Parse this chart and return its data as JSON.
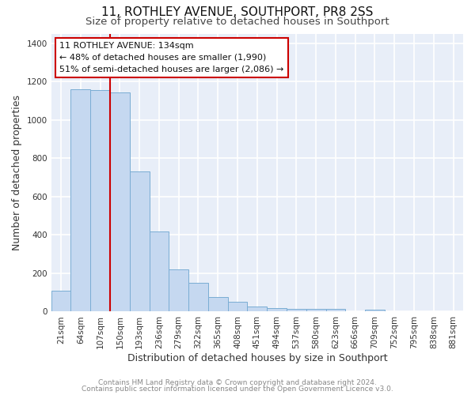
{
  "title": "11, ROTHLEY AVENUE, SOUTHPORT, PR8 2SS",
  "subtitle": "Size of property relative to detached houses in Southport",
  "xlabel": "Distribution of detached houses by size in Southport",
  "ylabel": "Number of detached properties",
  "footnote1": "Contains HM Land Registry data © Crown copyright and database right 2024.",
  "footnote2": "Contains public sector information licensed under the Open Government Licence v3.0.",
  "categories": [
    "21sqm",
    "64sqm",
    "107sqm",
    "150sqm",
    "193sqm",
    "236sqm",
    "279sqm",
    "322sqm",
    "365sqm",
    "408sqm",
    "451sqm",
    "494sqm",
    "537sqm",
    "580sqm",
    "623sqm",
    "666sqm",
    "709sqm",
    "752sqm",
    "795sqm",
    "838sqm",
    "881sqm"
  ],
  "values": [
    110,
    1160,
    1155,
    1145,
    730,
    420,
    220,
    150,
    75,
    50,
    28,
    20,
    14,
    14,
    14,
    0,
    10,
    0,
    0,
    0,
    0
  ],
  "bar_color": "#c5d8f0",
  "bar_edge_color": "#7aadd4",
  "red_line_index": 3,
  "annotation_line1": "11 ROTHLEY AVENUE: 134sqm",
  "annotation_line2": "← 48% of detached houses are smaller (1,990)",
  "annotation_line3": "51% of semi-detached houses are larger (2,086) →",
  "annotation_box_color": "#ffffff",
  "annotation_box_edge_color": "#cc0000",
  "ylim": [
    0,
    1450
  ],
  "yticks": [
    0,
    200,
    400,
    600,
    800,
    1000,
    1200,
    1400
  ],
  "plot_bg_color": "#e8eef8",
  "fig_bg_color": "#ffffff",
  "grid_color": "#ffffff",
  "title_fontsize": 11,
  "subtitle_fontsize": 9.5,
  "axis_label_fontsize": 9,
  "tick_fontsize": 7.5,
  "annotation_fontsize": 8,
  "footnote_fontsize": 6.5
}
